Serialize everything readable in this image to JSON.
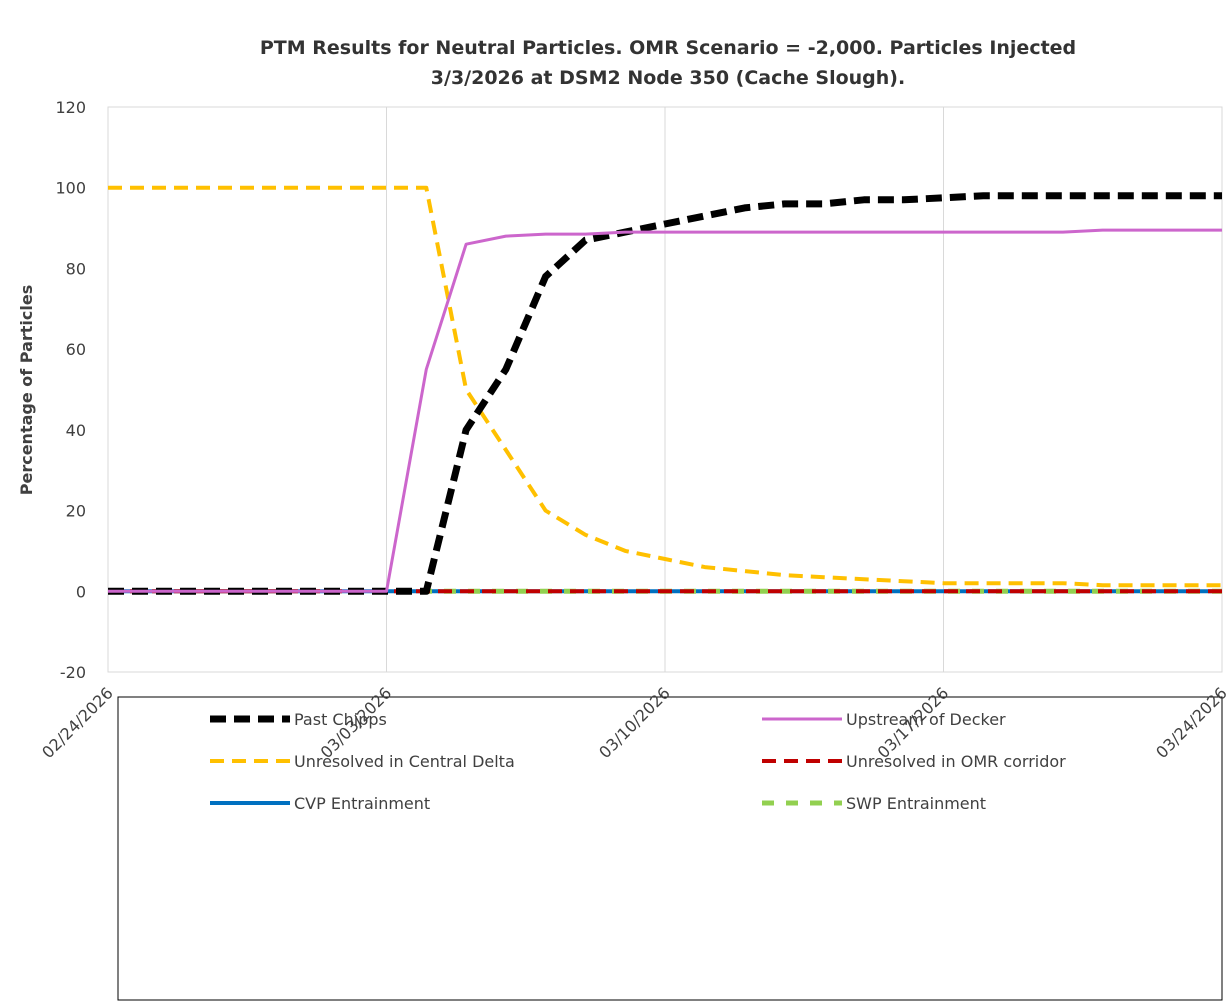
{
  "chart_data": {
    "type": "line",
    "title": [
      "PTM Results for Neutral Particles. OMR Scenario = -2,000. Particles Injected",
      "3/3/2026 at DSM2 Node 350 (Cache Slough)."
    ],
    "y_label": "Percentage of Particles",
    "x": [
      "2026-02-24",
      "2026-02-25",
      "2026-02-26",
      "2026-02-27",
      "2026-02-28",
      "2026-03-01",
      "2026-03-02",
      "2026-03-03",
      "2026-03-04",
      "2026-03-05",
      "2026-03-06",
      "2026-03-07",
      "2026-03-08",
      "2026-03-09",
      "2026-03-10",
      "2026-03-11",
      "2026-03-12",
      "2026-03-13",
      "2026-03-14",
      "2026-03-15",
      "2026-03-16",
      "2026-03-17",
      "2026-03-18",
      "2026-03-19",
      "2026-03-20",
      "2026-03-21",
      "2026-03-22",
      "2026-03-23",
      "2026-03-24"
    ],
    "series": [
      {
        "name": "Past Chipps",
        "color": "#000000",
        "style": "dashed",
        "values": [
          0,
          0,
          0,
          0,
          0,
          0,
          0,
          0,
          0,
          40,
          55,
          78,
          87,
          89,
          91,
          93,
          95,
          96,
          96,
          97,
          97,
          97.5,
          98,
          98,
          98,
          98,
          98,
          98,
          98
        ]
      },
      {
        "name": "Upstream of Decker",
        "color": "#cc66cc",
        "style": "solid",
        "values": [
          0,
          0,
          0,
          0,
          0,
          0,
          0,
          0,
          55,
          86,
          88,
          88.5,
          88.5,
          89,
          89,
          89,
          89,
          89,
          89,
          89,
          89,
          89,
          89,
          89,
          89,
          89.5,
          89.5,
          89.5,
          89.5
        ]
      },
      {
        "name": "Unresolved in Central Delta",
        "color": "#ffc000",
        "style": "dashed",
        "values": [
          100,
          100,
          100,
          100,
          100,
          100,
          100,
          100,
          100,
          50,
          35,
          20,
          14,
          10,
          8,
          6,
          5,
          4,
          3.5,
          3,
          2.5,
          2,
          2,
          2,
          2,
          1.5,
          1.5,
          1.5,
          1.5
        ]
      },
      {
        "name": "Unresolved in OMR corridor",
        "color": "#c00000",
        "style": "dashed",
        "values": [
          0,
          0,
          0,
          0,
          0,
          0,
          0,
          0,
          0,
          0,
          0,
          0,
          0,
          0,
          0,
          0,
          0,
          0,
          0,
          0,
          0,
          0,
          0,
          0,
          0,
          0,
          0,
          0,
          0
        ]
      },
      {
        "name": "CVP Entrainment",
        "color": "#0070c0",
        "style": "solid",
        "values": [
          0,
          0,
          0,
          0,
          0,
          0,
          0,
          0,
          0,
          0,
          0,
          0,
          0,
          0,
          0,
          0,
          0,
          0,
          0,
          0,
          0,
          0,
          0,
          0,
          0,
          0,
          0,
          0,
          0
        ]
      },
      {
        "name": "SWP Entrainment",
        "color": "#92d050",
        "style": "dashed",
        "values": [
          0,
          0,
          0,
          0,
          0,
          0,
          0,
          0,
          0,
          0,
          0,
          0,
          0,
          0,
          0,
          0,
          0,
          0,
          0,
          0,
          0,
          0,
          0,
          0,
          0,
          0,
          0,
          0,
          0
        ]
      }
    ],
    "xlim": [
      "2026-02-24",
      "2026-03-24"
    ],
    "xticks": [
      {
        "value": "2026-02-24",
        "label": "02/24/2026"
      },
      {
        "value": "2026-03-03",
        "label": "03/03/2026"
      },
      {
        "value": "2026-03-10",
        "label": "03/10/2026"
      },
      {
        "value": "2026-03-17",
        "label": "03/17/2026"
      },
      {
        "value": "2026-03-24",
        "label": "03/24/2026"
      }
    ],
    "ylim": [
      -20,
      120
    ],
    "yticks": [
      -20,
      0,
      20,
      40,
      60,
      80,
      100,
      120
    ],
    "grid": "x",
    "legend": "bottom"
  }
}
